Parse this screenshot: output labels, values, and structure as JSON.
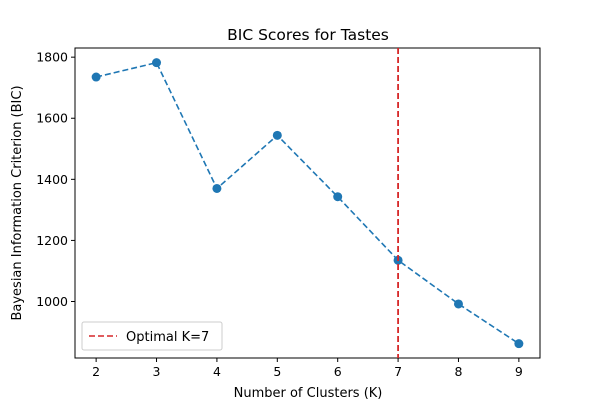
{
  "chart_data": {
    "type": "line",
    "title": "BIC Scores for Tastes",
    "xlabel": "Number of Clusters (K)",
    "ylabel": "Bayesian Information Criterion (BIC)",
    "x": [
      2,
      3,
      4,
      5,
      6,
      7,
      8,
      9
    ],
    "series": [
      {
        "values": [
          1735,
          1782,
          1370,
          1544,
          1343,
          1135,
          992,
          862
        ],
        "color": "#1f77b4",
        "line_style": "dashed",
        "marker": "circle"
      }
    ],
    "xlim": [
      1.65,
      9.35
    ],
    "ylim": [
      815,
      1830
    ],
    "xticks": [
      2,
      3,
      4,
      5,
      6,
      7,
      8,
      9
    ],
    "yticks": [
      1000,
      1200,
      1400,
      1600,
      1800
    ],
    "reference_line": {
      "x": 7,
      "color": "#d62728",
      "line_style": "dashed",
      "label": "Optimal K=7"
    },
    "legend": {
      "position": "lower-left",
      "entries": [
        "Optimal K=7"
      ]
    },
    "grid": false
  }
}
